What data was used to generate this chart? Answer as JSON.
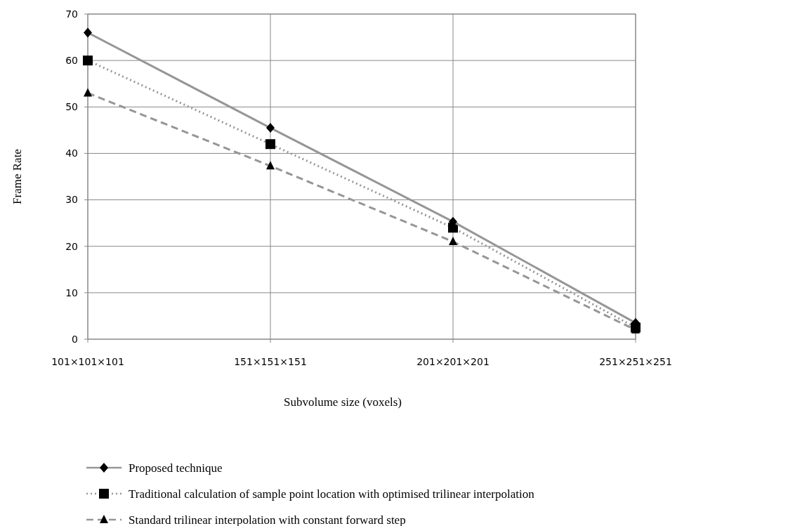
{
  "chart_data": {
    "type": "line",
    "xlabel": "Subvolume size (voxels)",
    "ylabel": "Frame Rate",
    "categories": [
      "101×101×101",
      "151×151×151",
      "201×201×201",
      "251×251×251"
    ],
    "ylim": [
      0,
      70
    ],
    "yticks": [
      0,
      10,
      20,
      30,
      40,
      50,
      60,
      70
    ],
    "grid": true,
    "legend": "bottom",
    "series": [
      {
        "name": "Proposed technique",
        "color": "#969696",
        "marker": "diamond",
        "line_style": "solid",
        "values": [
          66,
          45.5,
          25.3,
          3.5
        ]
      },
      {
        "name": "Traditional calculation of sample point location with optimised trilinear interpolation",
        "color": "#969696",
        "marker": "square",
        "line_style": "dotted",
        "values": [
          60,
          42,
          24,
          2.5
        ]
      },
      {
        "name": "Standard trilinear interpolation with constant forward step",
        "color": "#969696",
        "marker": "triangle",
        "line_style": "dashed",
        "values": [
          53,
          37.3,
          21,
          2
        ]
      }
    ]
  }
}
